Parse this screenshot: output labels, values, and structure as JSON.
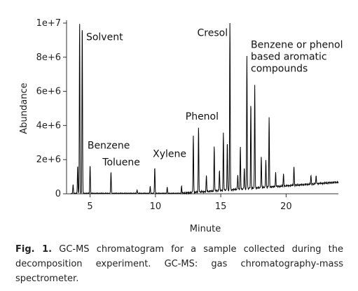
{
  "chart_data": {
    "type": "line",
    "xlabel": "Minute",
    "ylabel": "Abundance",
    "xlim": [
      3.2,
      24.0
    ],
    "ylim": [
      0,
      10000000
    ],
    "x_ticks": [
      {
        "value": 5,
        "label": "5"
      },
      {
        "value": 10,
        "label": "10"
      },
      {
        "value": 15,
        "label": "15"
      },
      {
        "value": 20,
        "label": "20"
      }
    ],
    "y_ticks": [
      {
        "value": 0,
        "label": "0"
      },
      {
        "value": 2000000,
        "label": "2e+6"
      },
      {
        "value": 4000000,
        "label": "4e+6"
      },
      {
        "value": 6000000,
        "label": "6e+6"
      },
      {
        "value": 8000000,
        "label": "8e+6"
      },
      {
        "value": 10000000,
        "label": "1e+7"
      }
    ],
    "grid": false,
    "color": "#000000",
    "peaks": [
      {
        "x": 3.7,
        "y": 500000
      },
      {
        "x": 4.05,
        "y": 1600000
      },
      {
        "x": 4.2,
        "y": 10000000
      },
      {
        "x": 4.4,
        "y": 10000000
      },
      {
        "x": 5.0,
        "y": 1650000
      },
      {
        "x": 6.6,
        "y": 1250000
      },
      {
        "x": 8.6,
        "y": 200000
      },
      {
        "x": 9.6,
        "y": 400000
      },
      {
        "x": 9.95,
        "y": 1500000
      },
      {
        "x": 10.9,
        "y": 350000
      },
      {
        "x": 12.0,
        "y": 400000
      },
      {
        "x": 12.9,
        "y": 3300000
      },
      {
        "x": 13.3,
        "y": 3800000
      },
      {
        "x": 13.9,
        "y": 950000
      },
      {
        "x": 14.5,
        "y": 2650000
      },
      {
        "x": 14.9,
        "y": 1200000
      },
      {
        "x": 15.2,
        "y": 3400000
      },
      {
        "x": 15.5,
        "y": 2800000
      },
      {
        "x": 15.7,
        "y": 10000000
      },
      {
        "x": 16.3,
        "y": 900000
      },
      {
        "x": 16.5,
        "y": 2500000
      },
      {
        "x": 16.8,
        "y": 1200000
      },
      {
        "x": 17.0,
        "y": 7800000
      },
      {
        "x": 17.3,
        "y": 5000000
      },
      {
        "x": 17.6,
        "y": 6100000
      },
      {
        "x": 18.1,
        "y": 1800000
      },
      {
        "x": 18.45,
        "y": 1600000
      },
      {
        "x": 18.7,
        "y": 4100000
      },
      {
        "x": 19.2,
        "y": 800000
      },
      {
        "x": 19.8,
        "y": 700000
      },
      {
        "x": 20.6,
        "y": 1100000
      },
      {
        "x": 21.9,
        "y": 500000
      },
      {
        "x": 22.3,
        "y": 450000
      }
    ],
    "annotations": [
      {
        "text": "Solvent",
        "x": 4.7,
        "y": 9000000
      },
      {
        "text": "Benzene",
        "x": 4.8,
        "y": 2650000
      },
      {
        "text": "Toluene",
        "x": 5.95,
        "y": 1650000
      },
      {
        "text": "Xylene",
        "x": 9.8,
        "y": 2150000
      },
      {
        "text": "Phenol",
        "x": 12.3,
        "y": 4350000
      },
      {
        "text": "Cresol",
        "x": 13.2,
        "y": 9250000
      },
      {
        "text": "Benzene or phenol",
        "x": 17.3,
        "y": 8550000
      },
      {
        "text": "based aromatic",
        "x": 17.3,
        "y": 7850000
      },
      {
        "text": "compounds",
        "x": 17.3,
        "y": 7150000
      }
    ]
  },
  "caption": {
    "label": "Fig. 1.",
    "text": " GC-MS chromatogram for a sample collected during the decomposition experiment. GC-MS: gas chromatography-mass spectrometer."
  }
}
